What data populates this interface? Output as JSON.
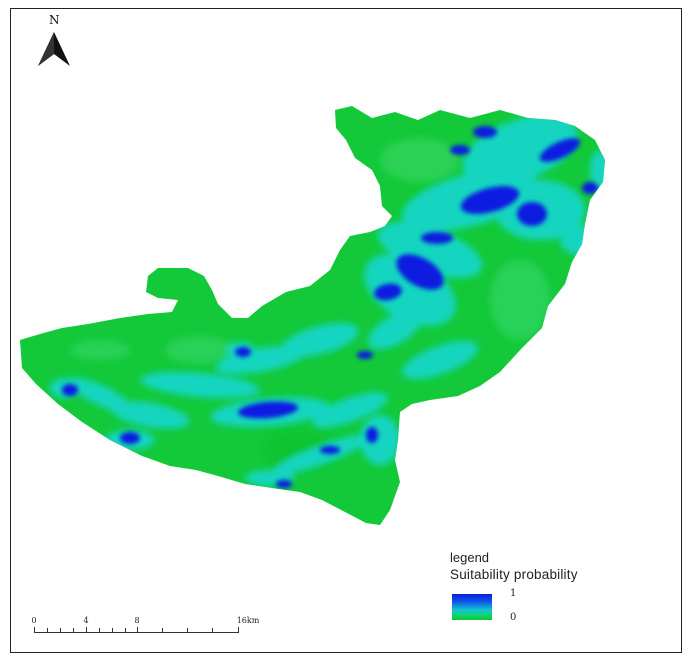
{
  "north_arrow": {
    "letter": "N",
    "icon": "north-arrow-icon"
  },
  "legend": {
    "title": "legend",
    "subtitle": "Suitability probability",
    "high_label": "1",
    "low_label": "0",
    "colors": {
      "high": "#0a1fe0",
      "mid": "#10c2d8",
      "low": "#0fc832"
    }
  },
  "scale_bar": {
    "labels": [
      "0",
      "4",
      "8",
      "16km"
    ]
  },
  "map": {
    "base_color": "#13c93a",
    "frame_color": "#222222"
  }
}
